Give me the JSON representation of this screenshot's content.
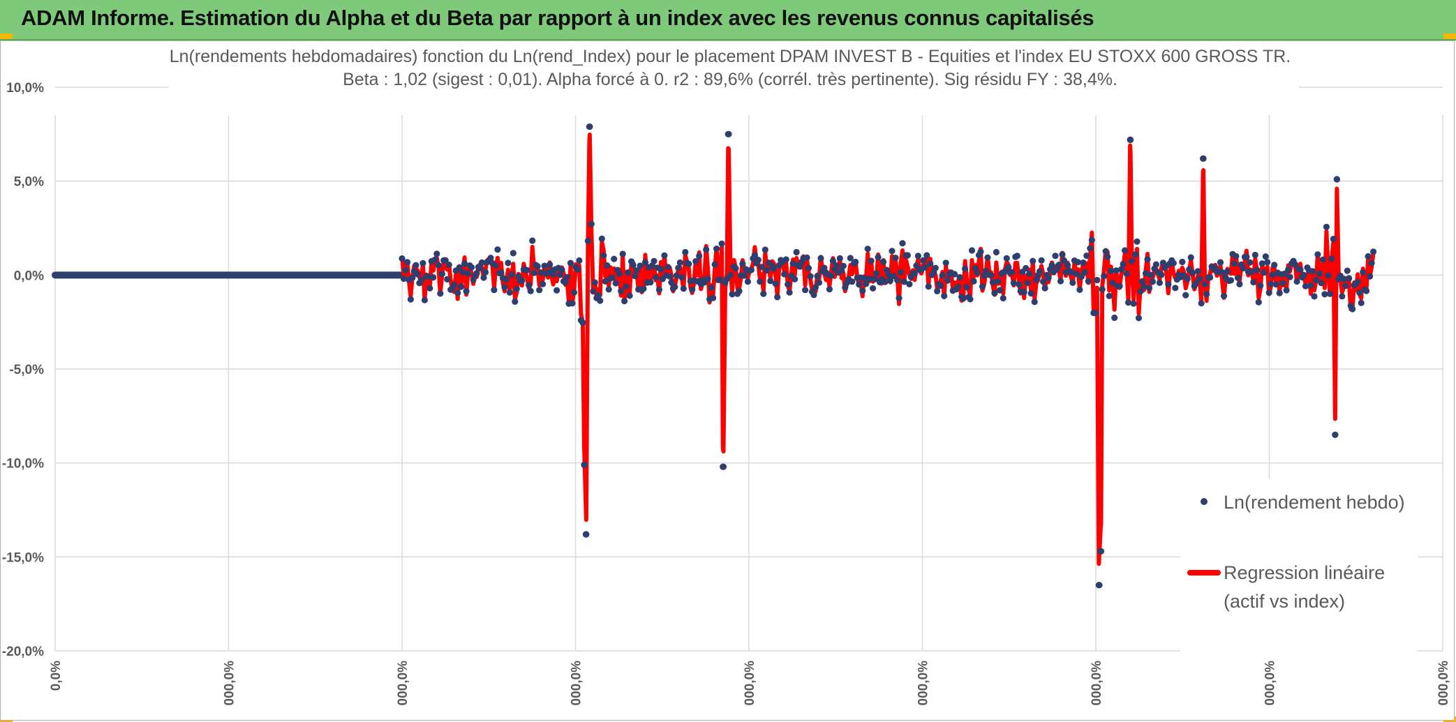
{
  "banner": {
    "title": "ADAM Informe. Estimation du Alpha et du Beta par rapport à un index avec les revenus connus capitalisés"
  },
  "colors": {
    "banner_bg": "#7ec97a",
    "points": "#2e3e6e",
    "regression": "#ff0000",
    "grid": "#d9d9d9",
    "text": "#595959"
  },
  "chart_data": {
    "type": "scatter",
    "title_lines": [
      "Ln(rendements hebdomadaires) fonction du Ln(rend_Index) pour le placement DPAM INVEST B - Equities  et l'index EU STOXX 600 GROSS TR.",
      "Beta : 1,02 (sigest : 0,01). Alpha forcé à 0. r2 : 89,6% (corrél. très pertinente). Sig résidu FY : 38,4%."
    ],
    "y_ticks": [
      "10,0%",
      "5,0%",
      "0,0%",
      "-5,0%",
      "-10,0%",
      "-15,0%",
      "-20,0%"
    ],
    "y_tick_values": [
      10,
      5,
      0,
      -5,
      -10,
      -15,
      -20
    ],
    "ylim": [
      -20,
      10
    ],
    "x_ticks": [
      "0,0%",
      "000,0%",
      "000,0%",
      "000,0%",
      "000,0%",
      "000,0%",
      "000,0%",
      "000,0%",
      "000,0%"
    ],
    "grid": true,
    "legend_position": "bottom-right",
    "series": [
      {
        "name": "Ln(rendement hebdo)",
        "kind": "points"
      },
      {
        "name_lines": [
          "Regression linéaire",
          "(actif vs index)"
        ],
        "kind": "line"
      }
    ],
    "flat_segment": {
      "x_start": 0.0,
      "x_end": 2.0,
      "y": 0.0
    },
    "active_segment": {
      "x_start": 2.0,
      "x_end": 7.6
    },
    "notable_extremes": [
      {
        "x": 3.08,
        "y": 7.9
      },
      {
        "x": 3.06,
        "y": -13.8
      },
      {
        "x": 3.05,
        "y": -10.1
      },
      {
        "x": 3.88,
        "y": 7.5
      },
      {
        "x": 3.85,
        "y": -10.2
      },
      {
        "x": 6.02,
        "y": -16.5
      },
      {
        "x": 6.03,
        "y": -14.7
      },
      {
        "x": 6.2,
        "y": 7.2
      },
      {
        "x": 6.62,
        "y": 6.2
      },
      {
        "x": 7.38,
        "y": -8.5
      },
      {
        "x": 7.39,
        "y": 5.1
      }
    ],
    "typical_spread_pct": 2.5
  }
}
